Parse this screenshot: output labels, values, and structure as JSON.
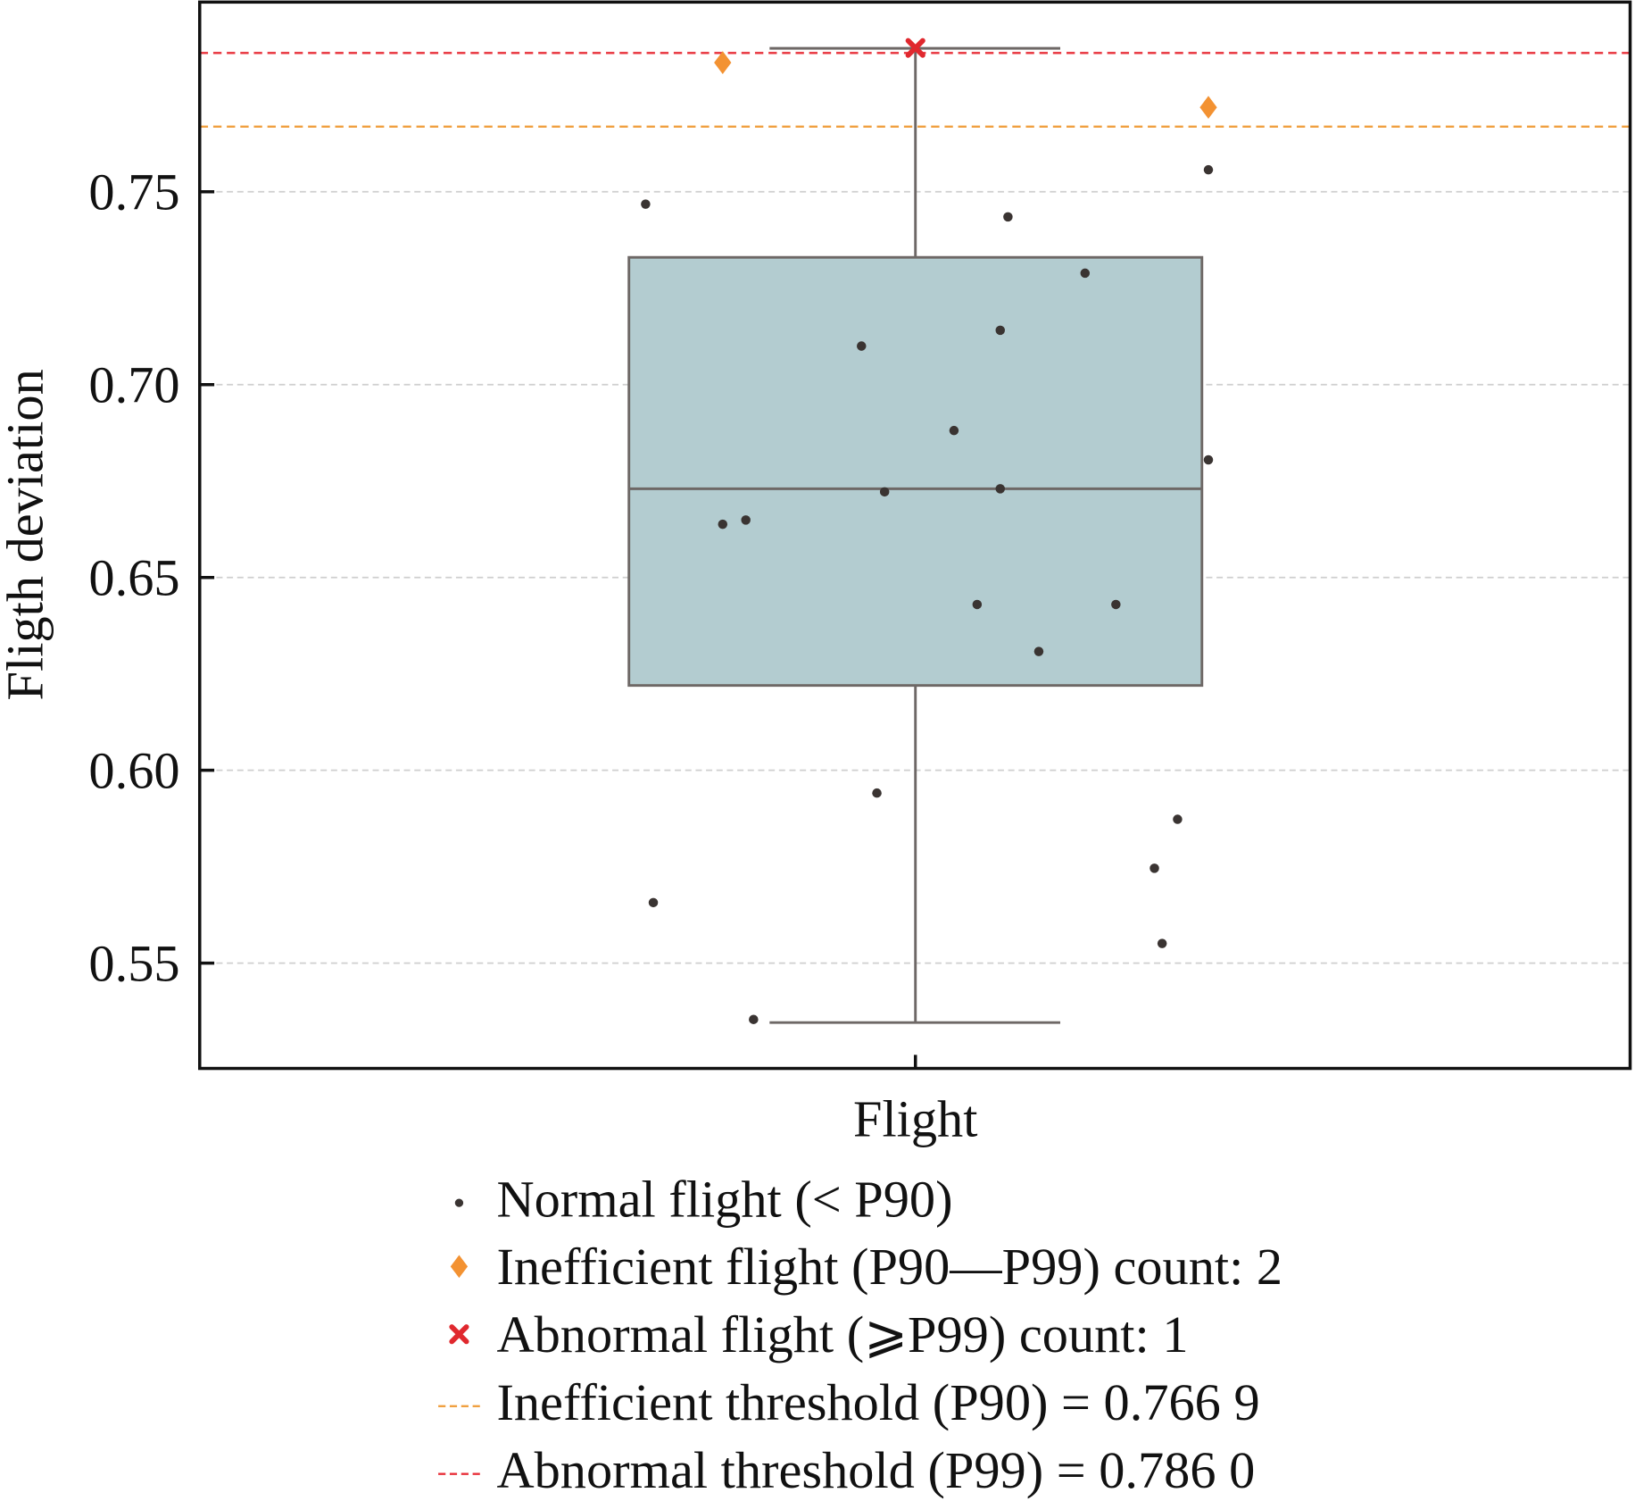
{
  "chart_data": {
    "type": "box",
    "title": "",
    "xlabel": "",
    "ylabel": "Fligth deviation",
    "categories": [
      "Flight"
    ],
    "ylim": [
      0.522,
      0.8
    ],
    "yticks": [
      0.55,
      0.6,
      0.65,
      0.7,
      0.75
    ],
    "ytick_labels": [
      "0.55",
      "0.60",
      "0.65",
      "0.70",
      "0.75"
    ],
    "grid": "horizontal dashed",
    "box": {
      "whisker_low": 0.5346,
      "q1": 0.622,
      "median": 0.673,
      "q3": 0.733,
      "whisker_high": 0.7872
    },
    "normal_points": [
      {
        "jitter": -0.35,
        "y": 0.7468
      },
      {
        "jitter": 0.12,
        "y": 0.7435
      },
      {
        "jitter": 0.38,
        "y": 0.7557
      },
      {
        "jitter": 0.22,
        "y": 0.7289
      },
      {
        "jitter": -0.07,
        "y": 0.71
      },
      {
        "jitter": 0.11,
        "y": 0.7141
      },
      {
        "jitter": 0.05,
        "y": 0.6881
      },
      {
        "jitter": 0.38,
        "y": 0.6805
      },
      {
        "jitter": -0.04,
        "y": 0.6722
      },
      {
        "jitter": 0.11,
        "y": 0.673
      },
      {
        "jitter": -0.25,
        "y": 0.6638
      },
      {
        "jitter": -0.22,
        "y": 0.6649
      },
      {
        "jitter": 0.08,
        "y": 0.643
      },
      {
        "jitter": 0.26,
        "y": 0.643
      },
      {
        "jitter": 0.16,
        "y": 0.6308
      },
      {
        "jitter": -0.05,
        "y": 0.5941
      },
      {
        "jitter": 0.34,
        "y": 0.5873
      },
      {
        "jitter": 0.31,
        "y": 0.5746
      },
      {
        "jitter": -0.34,
        "y": 0.5657
      },
      {
        "jitter": 0.32,
        "y": 0.5551
      },
      {
        "jitter": -0.21,
        "y": 0.5354
      }
    ],
    "inefficient_points": [
      {
        "jitter": -0.25,
        "y": 0.7835
      },
      {
        "jitter": 0.38,
        "y": 0.7719
      }
    ],
    "abnormal_points": [
      {
        "jitter": 0.0,
        "y": 0.7873
      }
    ],
    "thresholds": [
      {
        "name": "Inefficient threshold (P90)",
        "value": 0.7669,
        "color": "#f0a040"
      },
      {
        "name": "Abnormal threshold (P99)",
        "value": 0.786,
        "color": "#e8303a"
      }
    ],
    "colors": {
      "box_fill": "#b3ccd0",
      "box_edge": "#6e6866",
      "normal": "#3a3432",
      "inefficient": "#f39232",
      "abnormal": "#e0282e",
      "grid": "#cfcfcf"
    },
    "legend": {
      "placement": "bottom",
      "entries": [
        {
          "marker": "dot",
          "label": "Normal flight (< P90)"
        },
        {
          "marker": "diamond",
          "label": "Inefficient flight (P90—P99) count: 2"
        },
        {
          "marker": "x",
          "label": "Abnormal flight (⩾P99) count: 1"
        },
        {
          "marker": "dash-orange",
          "label": "Inefficient threshold (P90) = 0.766 9"
        },
        {
          "marker": "dash-red",
          "label": "Abnormal threshold (P99) = 0.786 0"
        }
      ]
    }
  }
}
